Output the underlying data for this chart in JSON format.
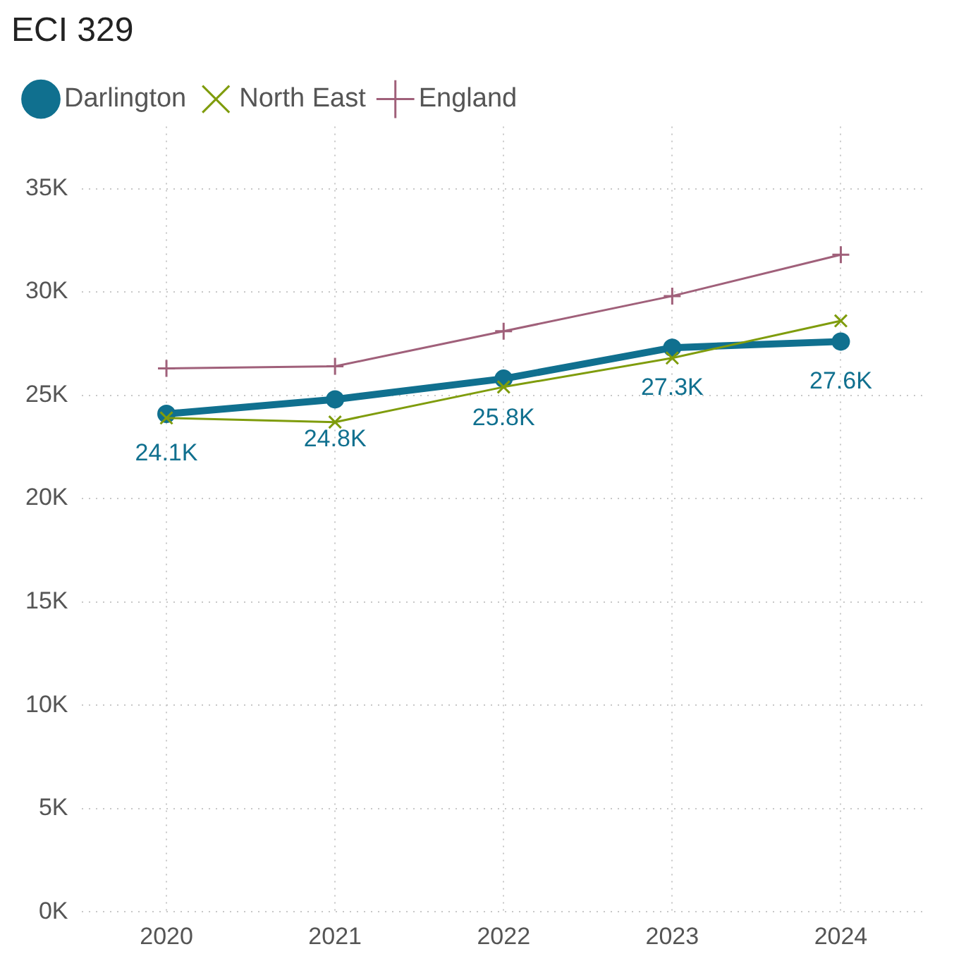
{
  "chart_data": {
    "type": "line",
    "title": "ECI 329",
    "categories": [
      "2020",
      "2021",
      "2022",
      "2023",
      "2024"
    ],
    "series": [
      {
        "name": "Darlington",
        "color": "#10708f",
        "marker": "circle",
        "values": [
          24100,
          24800,
          25800,
          27300,
          27600
        ],
        "value_labels": [
          "24.1K",
          "24.8K",
          "25.8K",
          "27.3K",
          "27.6K"
        ]
      },
      {
        "name": "North East",
        "color": "#7f9c0c",
        "marker": "cross",
        "values": [
          23900,
          23700,
          25400,
          26800,
          28600
        ]
      },
      {
        "name": "England",
        "color": "#a0607a",
        "marker": "plus",
        "values": [
          26300,
          26400,
          28100,
          29800,
          31800
        ]
      }
    ],
    "ylim": [
      0,
      38000
    ],
    "yticks": [
      {
        "value": 0,
        "label": "0K"
      },
      {
        "value": 5000,
        "label": "5K"
      },
      {
        "value": 10000,
        "label": "10K"
      },
      {
        "value": 15000,
        "label": "15K"
      },
      {
        "value": 20000,
        "label": "20K"
      },
      {
        "value": 25000,
        "label": "25K"
      },
      {
        "value": 30000,
        "label": "30K"
      },
      {
        "value": 35000,
        "label": "35K"
      }
    ],
    "grid": true,
    "legend": "top left",
    "line_style": "solid"
  }
}
